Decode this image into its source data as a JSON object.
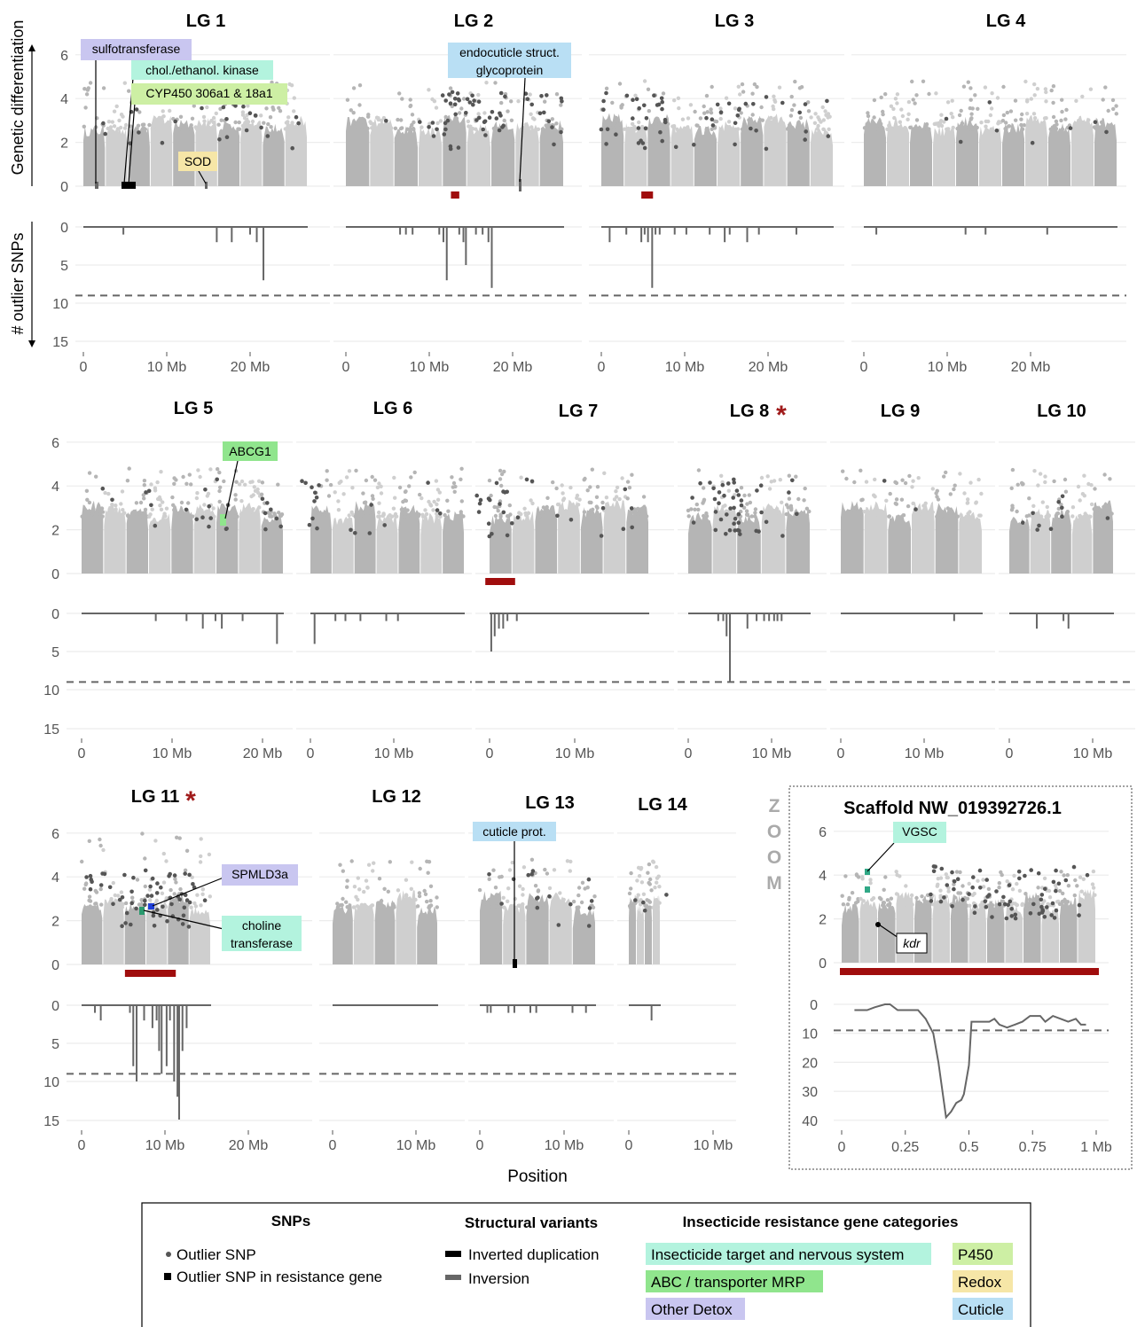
{
  "y_axis": {
    "top_label": "Genetic differentiation",
    "bottom_label": "# outlier SNPs"
  },
  "x_axis_label": "Position",
  "zoom_label": "ZOOM",
  "colors": {
    "snp_light": "#cfcfcf",
    "snp_mid": "#b5b5b5",
    "outlier_snp": "#555555",
    "inversion": "#666666",
    "inverted_duplication": "#000000",
    "region_bar": "#a00d0d",
    "asterisk": "#a01a1a",
    "cat_target": "#b3f3de",
    "cat_abc": "#90e58d",
    "cat_other_detox": "#c9c6f0",
    "cat_p450": "#cdefa4",
    "cat_redox": "#f6e6a7",
    "cat_cuticle": "#b9dff4"
  },
  "chart_data": {
    "type": "scatter",
    "panels": [
      {
        "name": "LG 1",
        "xlim_mb": [
          0,
          24
        ],
        "x_ticks": [
          "0",
          "10 Mb",
          "20 Mb"
        ],
        "outlier_snp_counts": [
          [
            4.8,
            1
          ],
          [
            16,
            2
          ],
          [
            17.8,
            2
          ],
          [
            20,
            1
          ],
          [
            20.8,
            2
          ],
          [
            21.6,
            7
          ]
        ],
        "annotations": [
          "sulfotransferase",
          "chol./ethanol. kinase",
          "CYP450 306a1 & 18a1",
          "SOD"
        ]
      },
      {
        "name": "LG 2",
        "xlim_mb": [
          0,
          24
        ],
        "x_ticks": [
          "0",
          "10 Mb",
          "20 Mb"
        ],
        "outlier_snp_counts": [
          [
            6.5,
            1
          ],
          [
            7.2,
            1
          ],
          [
            8,
            1
          ],
          [
            11.2,
            1
          ],
          [
            11.7,
            2
          ],
          [
            12.1,
            7
          ],
          [
            13.6,
            1
          ],
          [
            14.1,
            2
          ],
          [
            14.4,
            5
          ],
          [
            15.6,
            1
          ],
          [
            16.4,
            1
          ],
          [
            17.1,
            2
          ],
          [
            17.5,
            8
          ]
        ],
        "annotations": [
          "endocuticle struct. glycoprotein"
        ],
        "region_mb": [
          12.6,
          13.6
        ]
      },
      {
        "name": "LG 3",
        "xlim_mb": [
          0,
          24
        ],
        "x_ticks": [
          "0",
          "10 Mb",
          "20 Mb"
        ],
        "outlier_snp_counts": [
          [
            1,
            2
          ],
          [
            3,
            1
          ],
          [
            4.8,
            2
          ],
          [
            5.2,
            1
          ],
          [
            5.6,
            2
          ],
          [
            6.1,
            8
          ],
          [
            6.5,
            1
          ],
          [
            7,
            1
          ],
          [
            8.8,
            1
          ],
          [
            10.2,
            1
          ],
          [
            13,
            1
          ],
          [
            14.8,
            2
          ],
          [
            15.4,
            1
          ],
          [
            17.5,
            2
          ],
          [
            18.9,
            1
          ],
          [
            23.4,
            1
          ]
        ],
        "region_mb": [
          4.8,
          6.2
        ]
      },
      {
        "name": "LG 4",
        "xlim_mb": [
          0,
          28
        ],
        "x_ticks": [
          "0",
          "10 Mb",
          "20 Mb"
        ],
        "outlier_snp_counts": [
          [
            1.5,
            1
          ],
          [
            12.2,
            1
          ],
          [
            14.6,
            1
          ],
          [
            22,
            1
          ]
        ]
      },
      {
        "name": "LG 5",
        "xlim_mb": [
          0,
          22
        ],
        "x_ticks": [
          "0",
          "10 Mb",
          "20 Mb"
        ],
        "outlier_snp_counts": [
          [
            8.2,
            1
          ],
          [
            11.6,
            1
          ],
          [
            13.4,
            2
          ],
          [
            14.8,
            1
          ],
          [
            15.5,
            2
          ],
          [
            17.8,
            1
          ],
          [
            21.6,
            4
          ]
        ],
        "annotations": [
          "ABCG1"
        ]
      },
      {
        "name": "LG 6",
        "xlim_mb": [
          0,
          18
        ],
        "x_ticks": [
          "0",
          "10 Mb"
        ],
        "outlier_snp_counts": [
          [
            0.5,
            4
          ],
          [
            3,
            1
          ],
          [
            4.2,
            1
          ],
          [
            6,
            1
          ],
          [
            9.1,
            1
          ],
          [
            10.5,
            1
          ]
        ]
      },
      {
        "name": "LG 7",
        "xlim_mb": [
          0,
          22
        ],
        "x_ticks": [
          "0",
          "10 Mb"
        ],
        "outlier_snp_counts": [
          [
            0.2,
            5
          ],
          [
            0.6,
            3
          ],
          [
            1.1,
            2
          ],
          [
            1.6,
            2
          ],
          [
            2.1,
            1
          ],
          [
            3.2,
            1
          ]
        ],
        "region_mb": [
          -0.5,
          3
        ]
      },
      {
        "name": "LG 8",
        "starred": true,
        "xlim_mb": [
          0,
          14
        ],
        "x_ticks": [
          "0",
          "10 Mb"
        ],
        "outlier_snp_counts": [
          [
            3.6,
            1
          ],
          [
            4.2,
            1
          ],
          [
            4.6,
            3
          ],
          [
            5,
            9
          ],
          [
            7.1,
            2
          ],
          [
            8.2,
            1
          ],
          [
            9.1,
            1
          ],
          [
            9.7,
            1
          ],
          [
            10.3,
            1
          ],
          [
            10.7,
            1
          ],
          [
            11.2,
            1
          ]
        ]
      },
      {
        "name": "LG 9",
        "xlim_mb": [
          0,
          16
        ],
        "x_ticks": [
          "0",
          "10 Mb"
        ],
        "outlier_snp_counts": [
          [
            13.6,
            1
          ]
        ]
      },
      {
        "name": "LG 10",
        "xlim_mb": [
          0,
          12
        ],
        "x_ticks": [
          "0",
          "10 Mb"
        ],
        "outlier_snp_counts": [
          [
            3.3,
            2
          ],
          [
            6.5,
            1
          ],
          [
            7.1,
            2
          ]
        ]
      },
      {
        "name": "LG 11",
        "starred": true,
        "xlim_mb": [
          0,
          26
        ],
        "x_ticks": [
          "0",
          "10 Mb",
          "20 Mb"
        ],
        "outlier_snp_counts": [
          [
            1.6,
            1
          ],
          [
            2.3,
            2
          ],
          [
            5.8,
            1
          ],
          [
            6.2,
            8
          ],
          [
            6.6,
            10
          ],
          [
            7.5,
            2
          ],
          [
            8.5,
            3
          ],
          [
            9,
            2
          ],
          [
            9.3,
            6
          ],
          [
            9.6,
            9
          ],
          [
            10.2,
            8
          ],
          [
            10.6,
            2
          ],
          [
            11.1,
            10
          ],
          [
            11.5,
            12
          ],
          [
            11.7,
            15
          ],
          [
            12.1,
            6
          ],
          [
            12.6,
            3
          ]
        ],
        "annotations": [
          "SPMLD3a",
          "choline transferase"
        ],
        "region_mb": [
          5.2,
          11.3
        ]
      },
      {
        "name": "LG 12",
        "xlim_mb": [
          0,
          14
        ],
        "x_ticks": [
          "0",
          "10 Mb"
        ],
        "outlier_snp_counts": []
      },
      {
        "name": "LG 13",
        "xlim_mb": [
          0,
          14
        ],
        "x_ticks": [
          "0",
          "10 Mb"
        ],
        "outlier_snp_counts": [
          [
            0.9,
            1
          ],
          [
            1.3,
            1
          ],
          [
            3.4,
            1
          ],
          [
            4.1,
            1
          ],
          [
            6,
            1
          ],
          [
            6.7,
            1
          ],
          [
            11,
            1
          ],
          [
            12.6,
            1
          ]
        ],
        "annotations": [
          "cuticle prot."
        ]
      },
      {
        "name": "LG 14",
        "xlim_mb": [
          0,
          12
        ],
        "x_ticks": [
          "0",
          "10 Mb"
        ],
        "outlier_snp_counts": [
          [
            2.7,
            2
          ]
        ]
      }
    ],
    "zoom_panel": {
      "name": "Scaffold NW_019392726.1",
      "x_ticks": [
        "0",
        "0.25",
        "0.5",
        "0.75",
        "1 Mb"
      ],
      "xlim_mb": [
        0,
        1
      ],
      "annotations": [
        "VGSC",
        "kdr"
      ],
      "outlier_snp_counts": [
        [
          0.05,
          2
        ],
        [
          0.08,
          2
        ],
        [
          0.1,
          2
        ],
        [
          0.13,
          1
        ],
        [
          0.17,
          0
        ],
        [
          0.19,
          0
        ],
        [
          0.22,
          2
        ],
        [
          0.26,
          2
        ],
        [
          0.3,
          2
        ],
        [
          0.33,
          5
        ],
        [
          0.36,
          10
        ],
        [
          0.38,
          20
        ],
        [
          0.41,
          39
        ],
        [
          0.43,
          37
        ],
        [
          0.45,
          34
        ],
        [
          0.47,
          33
        ],
        [
          0.48,
          31
        ],
        [
          0.5,
          21
        ],
        [
          0.51,
          6
        ],
        [
          0.54,
          6
        ],
        [
          0.58,
          6
        ],
        [
          0.6,
          5
        ],
        [
          0.62,
          7
        ],
        [
          0.65,
          8
        ],
        [
          0.68,
          7
        ],
        [
          0.71,
          6
        ],
        [
          0.74,
          4
        ],
        [
          0.78,
          4
        ],
        [
          0.8,
          6
        ],
        [
          0.83,
          4
        ],
        [
          0.86,
          5
        ],
        [
          0.89,
          6
        ],
        [
          0.92,
          5
        ],
        [
          0.94,
          7
        ],
        [
          0.96,
          7
        ]
      ]
    },
    "y_ticks_top": [
      "0",
      "2",
      "4",
      "6"
    ],
    "y_ticks_bottom": [
      "0",
      "5",
      "10",
      "15"
    ],
    "zoom_y_ticks_bottom": [
      "0",
      "10",
      "20",
      "30",
      "40"
    ],
    "threshold_outlier_snps": 9
  },
  "legend": {
    "snps_title": "SNPs",
    "snp_items": [
      "Outlier SNP",
      "Outlier SNP in resistance gene"
    ],
    "sv_title": "Structural variants",
    "sv_items": [
      "Inverted duplication",
      "Inversion"
    ],
    "cat_title": "Insecticide resistance gene categories",
    "categories": [
      "Insecticide target and nervous system",
      "ABC / transporter MRP",
      "Other Detox",
      "P450",
      "Redox",
      "Cuticle"
    ]
  }
}
